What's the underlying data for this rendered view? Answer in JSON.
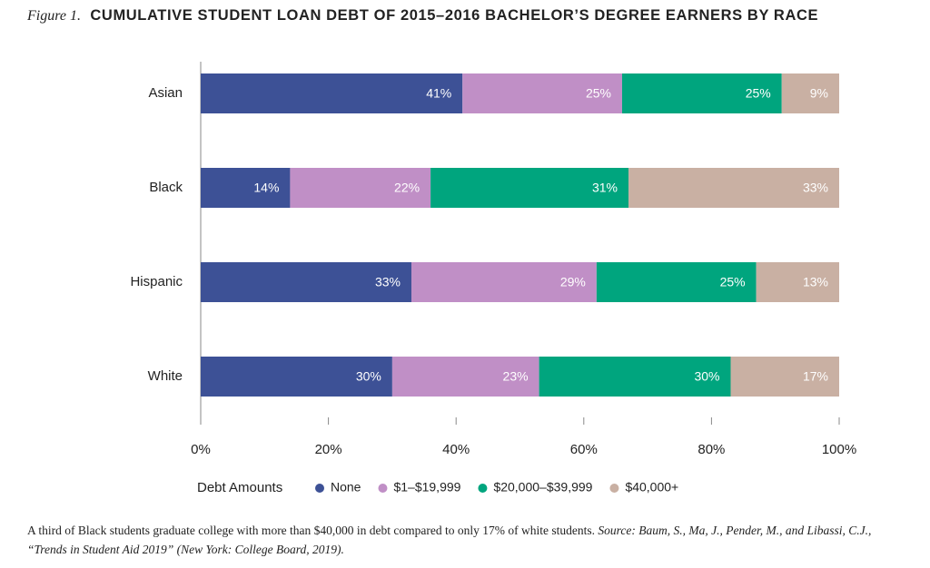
{
  "chart_data": {
    "type": "stacked-barh",
    "figure_label": "Figure 1.",
    "title": "CUMULATIVE STUDENT LOAN DEBT OF 2015–2016 BACHELOR’S DEGREE EARNERS BY RACE",
    "categories": [
      "Asian",
      "Black",
      "Hispanic",
      "White"
    ],
    "series": [
      {
        "name": "None",
        "color": "#3d5196",
        "values": [
          41,
          14,
          33,
          30
        ],
        "value_labels": [
          "41%",
          "14%",
          "33%",
          "30%"
        ]
      },
      {
        "name": "$1–$19,999",
        "color": "#c08fc6",
        "values": [
          25,
          22,
          29,
          23
        ],
        "value_labels": [
          "25%",
          "22%",
          "29%",
          "23%"
        ]
      },
      {
        "name": "$20,000–$39,999",
        "color": "#00a57e",
        "values": [
          25,
          31,
          25,
          30
        ],
        "value_labels": [
          "25%",
          "31%",
          "25%",
          "30%"
        ]
      },
      {
        "name": "$40,000+",
        "color": "#c9b0a3",
        "values": [
          9,
          33,
          13,
          17
        ],
        "value_labels": [
          "9%",
          "33%",
          "13%",
          "17%"
        ]
      }
    ],
    "xlim": [
      0,
      100
    ],
    "xticks": [
      {
        "value": 0,
        "label": "0%"
      },
      {
        "value": 20,
        "label": "20%"
      },
      {
        "value": 40,
        "label": "40%"
      },
      {
        "value": 60,
        "label": "60%"
      },
      {
        "value": 80,
        "label": "80%"
      },
      {
        "value": 100,
        "label": "100%"
      }
    ],
    "legend_title": "Debt Amounts",
    "caption": "A third of Black students graduate college with more than $40,000 in debt compared to only 17% of white students.",
    "source": "Source: Baum, S., Ma, J., Pender, M., and Libassi, C.J., “Trends in Student Aid 2019” (New York: College Board, 2019)."
  }
}
